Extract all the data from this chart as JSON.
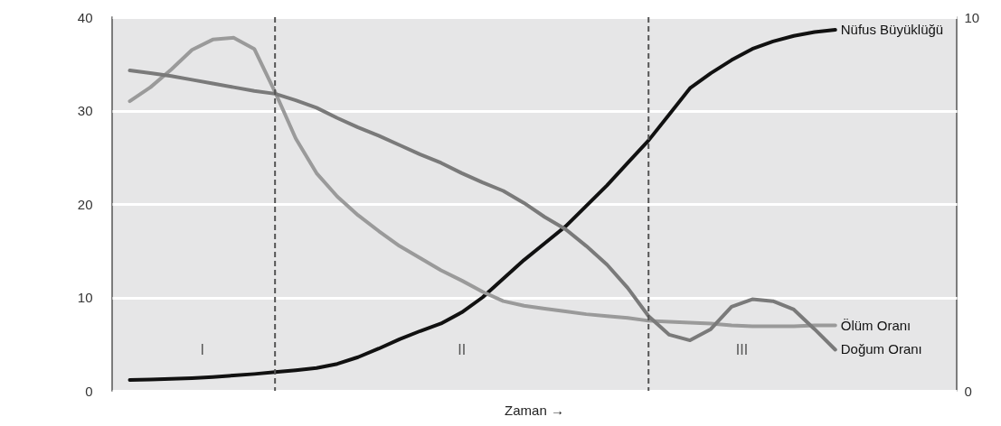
{
  "chart_data": {
    "type": "line",
    "xlabel": "Zaman →",
    "categories": [
      null,
      null,
      null,
      null,
      null,
      null,
      null,
      null,
      null,
      null,
      null,
      null,
      null,
      null,
      null,
      null,
      null,
      null,
      null,
      null,
      null,
      null,
      null,
      null,
      null,
      null,
      null,
      null,
      null,
      null,
      null,
      null,
      null,
      null,
      null,
      null,
      null,
      null,
      null,
      null
    ],
    "ylim": [
      0,
      40
    ],
    "yticks": [
      0,
      10,
      20,
      30,
      40
    ],
    "y2lim": [
      0,
      10
    ],
    "y2ticks": [
      0,
      10
    ],
    "grid": "y",
    "series": [
      {
        "name": "Nüfus Büyüklüğü",
        "color": "#111111",
        "axis": "y2",
        "values": [
          0.29,
          0.3,
          0.32,
          0.34,
          0.37,
          0.41,
          0.45,
          0.5,
          0.55,
          0.61,
          0.72,
          0.9,
          1.13,
          1.38,
          1.6,
          1.8,
          2.1,
          2.5,
          3.0,
          3.5,
          3.95,
          4.4,
          4.95,
          5.5,
          6.1,
          6.7,
          7.4,
          8.1,
          8.5,
          8.85,
          9.15,
          9.35,
          9.5,
          9.6,
          9.66,
          null,
          null,
          null,
          null,
          null
        ]
      },
      {
        "name": "Ölüm Oranı",
        "color": "#9a9a9a",
        "values": [
          31.0,
          32.5,
          34.4,
          36.5,
          37.6,
          37.8,
          36.6,
          32.0,
          27.0,
          23.3,
          20.8,
          18.8,
          17.1,
          15.5,
          14.2,
          12.9,
          11.8,
          10.6,
          9.6,
          9.1,
          8.8,
          8.5,
          8.2,
          8.0,
          7.8,
          7.5,
          7.4,
          7.3,
          7.2,
          7.0,
          6.9,
          6.9,
          6.9,
          7.0,
          7.0,
          null,
          null,
          null,
          null,
          null
        ]
      },
      {
        "name": "Doğum Oranı",
        "color": "#7a7a7a",
        "values": [
          34.3,
          34.0,
          33.7,
          33.3,
          32.9,
          32.5,
          32.1,
          31.8,
          31.1,
          30.3,
          29.2,
          28.2,
          27.3,
          26.3,
          25.3,
          24.4,
          23.3,
          22.3,
          21.4,
          20.1,
          18.6,
          17.3,
          15.5,
          13.5,
          11.0,
          8.0,
          6.0,
          5.4,
          6.6,
          9.0,
          9.8,
          9.6,
          8.7,
          6.6,
          4.4,
          null,
          null,
          null,
          null,
          null
        ]
      }
    ],
    "annotations": [
      "I",
      "II",
      "III"
    ]
  }
}
